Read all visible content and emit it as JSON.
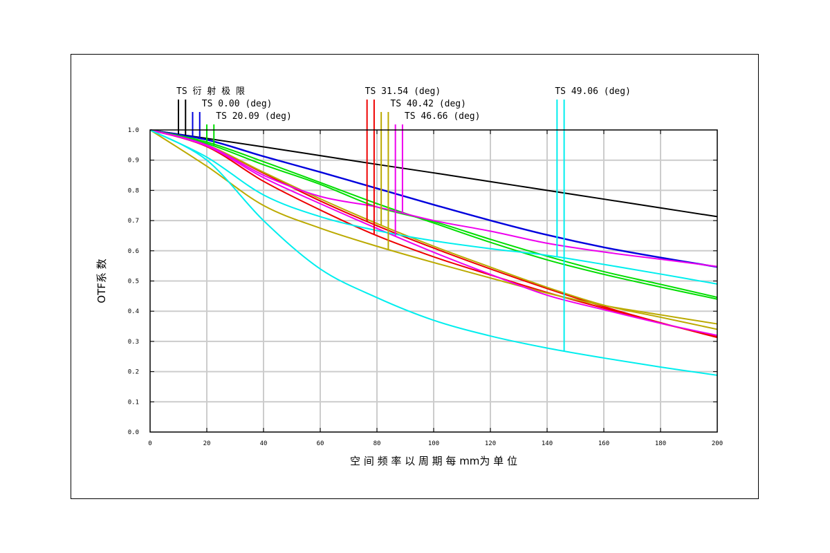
{
  "chart_data": {
    "type": "line",
    "xlabel": "空 间 频 率 以 周 期 每  mm为 单 位",
    "ylabel": "OTF系 数",
    "xlim": [
      0,
      200
    ],
    "ylim": [
      0,
      1
    ],
    "xticks": [
      "0",
      "20",
      "40",
      "60",
      "80",
      "100",
      "120",
      "140",
      "160",
      "180",
      "200"
    ],
    "yticks": [
      "0.0",
      "0.1",
      "0.2",
      "0.3",
      "0.4",
      "0.5",
      "0.6",
      "0.7",
      "0.8",
      "0.9",
      "1.0"
    ],
    "grid": true,
    "legend_entries": [
      {
        "label": "TS 衍 射 极 限",
        "color": "#000000",
        "markers": [
          10,
          12.5
        ],
        "level": 1
      },
      {
        "label": "TS 0.00 (deg)",
        "color": "#0000dd",
        "markers": [
          15,
          17.5
        ],
        "level": 2
      },
      {
        "label": "TS 20.09 (deg)",
        "color": "#00dd00",
        "markers": [
          20,
          22.5
        ],
        "level": 3
      },
      {
        "label": "TS 31.54 (deg)",
        "color": "#ee0000",
        "markers": [
          76.5,
          79
        ],
        "level": 1
      },
      {
        "label": "TS 40.42 (deg)",
        "color": "#bbaa00",
        "markers": [
          81.5,
          84
        ],
        "level": 2
      },
      {
        "label": "TS 46.66 (deg)",
        "color": "#ee00ee",
        "markers": [
          86.5,
          89
        ],
        "level": 3
      },
      {
        "label": "TS 49.06 (deg)",
        "color": "#00eeee",
        "markers": [
          143.5,
          146
        ],
        "level": 1
      }
    ],
    "series": [
      {
        "color": "#000000",
        "points": [
          [
            0,
            1
          ],
          [
            20,
            0.972
          ],
          [
            40,
            0.944
          ],
          [
            60,
            0.915
          ],
          [
            80,
            0.886
          ],
          [
            100,
            0.858
          ],
          [
            120,
            0.829
          ],
          [
            140,
            0.8
          ],
          [
            160,
            0.771
          ],
          [
            180,
            0.742
          ],
          [
            200,
            0.713
          ]
        ]
      },
      {
        "color": "#0000dd",
        "points": [
          [
            0,
            1
          ],
          [
            20,
            0.967
          ],
          [
            40,
            0.912
          ],
          [
            60,
            0.86
          ],
          [
            80,
            0.806
          ],
          [
            100,
            0.752
          ],
          [
            120,
            0.7
          ],
          [
            140,
            0.652
          ],
          [
            160,
            0.611
          ],
          [
            180,
            0.577
          ],
          [
            200,
            0.546
          ]
        ]
      },
      {
        "color": "#0000dd",
        "points": [
          [
            0,
            1
          ],
          [
            20,
            0.968
          ],
          [
            40,
            0.913
          ],
          [
            60,
            0.861
          ],
          [
            80,
            0.807
          ],
          [
            100,
            0.753
          ],
          [
            120,
            0.701
          ],
          [
            140,
            0.653
          ],
          [
            160,
            0.612
          ],
          [
            180,
            0.578
          ],
          [
            200,
            0.547
          ]
        ]
      },
      {
        "color": "#00dd00",
        "points": [
          [
            0,
            1
          ],
          [
            20,
            0.96
          ],
          [
            40,
            0.895
          ],
          [
            60,
            0.826
          ],
          [
            80,
            0.756
          ],
          [
            100,
            0.692
          ],
          [
            120,
            0.628
          ],
          [
            140,
            0.57
          ],
          [
            160,
            0.522
          ],
          [
            180,
            0.48
          ],
          [
            200,
            0.44
          ]
        ]
      },
      {
        "color": "#00dd00",
        "points": [
          [
            0,
            1
          ],
          [
            20,
            0.955
          ],
          [
            40,
            0.885
          ],
          [
            60,
            0.82
          ],
          [
            80,
            0.745
          ],
          [
            100,
            0.697
          ],
          [
            120,
            0.638
          ],
          [
            140,
            0.582
          ],
          [
            160,
            0.531
          ],
          [
            180,
            0.489
          ],
          [
            200,
            0.446
          ]
        ]
      },
      {
        "color": "#ee0000",
        "points": [
          [
            0,
            1
          ],
          [
            20,
            0.95
          ],
          [
            40,
            0.857
          ],
          [
            60,
            0.765
          ],
          [
            80,
            0.683
          ],
          [
            100,
            0.609
          ],
          [
            120,
            0.54
          ],
          [
            140,
            0.475
          ],
          [
            160,
            0.415
          ],
          [
            180,
            0.362
          ],
          [
            200,
            0.313
          ]
        ]
      },
      {
        "color": "#ee0000",
        "points": [
          [
            0,
            1
          ],
          [
            20,
            0.945
          ],
          [
            40,
            0.83
          ],
          [
            60,
            0.735
          ],
          [
            80,
            0.65
          ],
          [
            100,
            0.58
          ],
          [
            120,
            0.52
          ],
          [
            140,
            0.462
          ],
          [
            160,
            0.41
          ],
          [
            180,
            0.36
          ],
          [
            200,
            0.318
          ]
        ]
      },
      {
        "color": "#bbaa00",
        "points": [
          [
            0,
            1
          ],
          [
            20,
            0.95
          ],
          [
            40,
            0.86
          ],
          [
            60,
            0.772
          ],
          [
            80,
            0.69
          ],
          [
            100,
            0.615
          ],
          [
            120,
            0.546
          ],
          [
            140,
            0.479
          ],
          [
            160,
            0.42
          ],
          [
            180,
            0.38
          ],
          [
            200,
            0.34
          ]
        ]
      },
      {
        "color": "#bbaa00",
        "points": [
          [
            0,
            1
          ],
          [
            20,
            0.88
          ],
          [
            40,
            0.75
          ],
          [
            60,
            0.675
          ],
          [
            80,
            0.615
          ],
          [
            100,
            0.561
          ],
          [
            120,
            0.51
          ],
          [
            140,
            0.46
          ],
          [
            160,
            0.419
          ],
          [
            180,
            0.388
          ],
          [
            200,
            0.358
          ]
        ]
      },
      {
        "color": "#ee00ee",
        "points": [
          [
            0,
            1
          ],
          [
            20,
            0.947
          ],
          [
            40,
            0.842
          ],
          [
            60,
            0.756
          ],
          [
            80,
            0.674
          ],
          [
            100,
            0.595
          ],
          [
            120,
            0.522
          ],
          [
            140,
            0.453
          ],
          [
            160,
            0.405
          ],
          [
            180,
            0.36
          ],
          [
            200,
            0.32
          ]
        ]
      },
      {
        "color": "#ee00ee",
        "points": [
          [
            0,
            1
          ],
          [
            20,
            0.95
          ],
          [
            40,
            0.85
          ],
          [
            60,
            0.78
          ],
          [
            80,
            0.745
          ],
          [
            100,
            0.7
          ],
          [
            120,
            0.665
          ],
          [
            140,
            0.625
          ],
          [
            160,
            0.596
          ],
          [
            180,
            0.572
          ],
          [
            200,
            0.548
          ]
        ]
      },
      {
        "color": "#00eeee",
        "points": [
          [
            0,
            1
          ],
          [
            20,
            0.91
          ],
          [
            40,
            0.785
          ],
          [
            60,
            0.713
          ],
          [
            80,
            0.667
          ],
          [
            100,
            0.633
          ],
          [
            120,
            0.607
          ],
          [
            140,
            0.585
          ],
          [
            160,
            0.555
          ],
          [
            180,
            0.523
          ],
          [
            200,
            0.49
          ]
        ]
      },
      {
        "color": "#00eeee",
        "points": [
          [
            0,
            1
          ],
          [
            20,
            0.9
          ],
          [
            40,
            0.7
          ],
          [
            60,
            0.54
          ],
          [
            80,
            0.445
          ],
          [
            100,
            0.37
          ],
          [
            120,
            0.318
          ],
          [
            140,
            0.278
          ],
          [
            160,
            0.245
          ],
          [
            180,
            0.215
          ],
          [
            200,
            0.188
          ]
        ]
      }
    ],
    "drop_lines": [
      {
        "color": "#000000",
        "x": 10
      },
      {
        "color": "#000000",
        "x": 12.5
      },
      {
        "color": "#0000dd",
        "x": 15
      },
      {
        "color": "#0000dd",
        "x": 17.5
      },
      {
        "color": "#00dd00",
        "x": 20
      },
      {
        "color": "#00dd00",
        "x": 22.5
      },
      {
        "color": "#ee0000",
        "x": 76.5
      },
      {
        "color": "#ee0000",
        "x": 79
      },
      {
        "color": "#bbaa00",
        "x": 81.5
      },
      {
        "color": "#bbaa00",
        "x": 84
      },
      {
        "color": "#ee00ee",
        "x": 86.5
      },
      {
        "color": "#ee00ee",
        "x": 89
      },
      {
        "color": "#00eeee",
        "x": 143.5
      },
      {
        "color": "#00eeee",
        "x": 146
      }
    ]
  }
}
